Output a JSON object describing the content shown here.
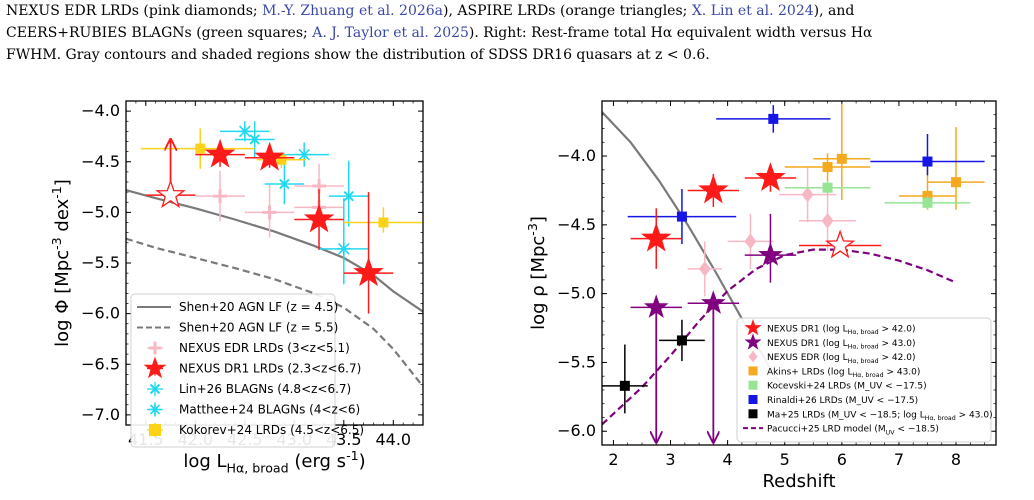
{
  "caption": {
    "l1_a": "NEXUS EDR LRDs (pink diamonds; ",
    "l1_c1": "M.-Y. Zhuang et al. 2026a",
    "l1_b": "), ASPIRE LRDs (orange triangles; ",
    "l1_c2": "X. Lin et al. 2024",
    "l1_c": "), and",
    "l2_a": "CEERS+RUBIES BLAGNs (green squares; ",
    "l2_c1": "A. J. Taylor et al. 2025",
    "l2_b": "). Right: Rest-frame total Hα equivalent width versus Hα",
    "l3": "FWHM. Gray contours and shaded regions show the distribution of SDSS DR16 quasars at z < 0.6."
  },
  "colors": {
    "red": "#ff1a1a",
    "pink": "#f7b8c4",
    "cyan": "#22d8f0",
    "gold": "#ffd21a",
    "gray": "#7a7a7a",
    "orange": "#f5a91f",
    "lightgreen": "#98e494",
    "blue": "#1515e6",
    "black": "#000000",
    "purple": "#800080"
  },
  "chart_data": [
    {
      "type": "scatter",
      "xlabel": "log L_{Hα, broad} (erg s^{-1})",
      "ylabel": "log Φ [Mpc^{-3} dex^{-1}]",
      "xlim": [
        41.3,
        44.3
      ],
      "ylim": [
        -7.1,
        -3.9
      ],
      "xticks": [
        "41.5",
        "42.0",
        "42.5",
        "43.0",
        "43.5",
        "44.0"
      ],
      "yticks": [
        "−4.0",
        "−4.5",
        "−5.0",
        "−5.5",
        "−6.0",
        "−6.5",
        "−7.0"
      ],
      "legend_position": "lower-left",
      "curves": [
        {
          "name": "Shen+20 AGN LF (z = 4.5)",
          "style": "solid",
          "color": "gray",
          "x": [
            41.3,
            41.6,
            42.0,
            42.4,
            42.8,
            43.2,
            43.5,
            43.8,
            44.0,
            44.3
          ],
          "y": [
            -4.78,
            -4.86,
            -4.96,
            -5.07,
            -5.19,
            -5.33,
            -5.45,
            -5.62,
            -5.78,
            -5.98
          ]
        },
        {
          "name": "Shen+20 AGN LF (z = 5.5)",
          "style": "dashed",
          "color": "gray",
          "x": [
            41.3,
            41.6,
            42.0,
            42.4,
            42.8,
            43.2,
            43.5,
            43.8,
            44.0,
            44.3
          ],
          "y": [
            -5.26,
            -5.35,
            -5.45,
            -5.55,
            -5.66,
            -5.8,
            -5.94,
            -6.15,
            -6.35,
            -6.72
          ]
        }
      ],
      "series": [
        {
          "name": "NEXUS EDR LRDs (3<z<5.1)",
          "marker": "plus",
          "color": "pink",
          "points": [
            {
              "x": 42.25,
              "y": -4.84,
              "xerr": [
                0.25,
                0.25
              ],
              "yerr": [
                0.25,
                0.25
              ]
            },
            {
              "x": 42.75,
              "y": -5.0,
              "xerr": [
                0.25,
                0.25
              ],
              "yerr": [
                0.25,
                0.28
              ]
            },
            {
              "x": 43.25,
              "y": -4.74,
              "xerr": [
                0.25,
                0.25
              ],
              "yerr": [
                0.22,
                0.22
              ]
            },
            {
              "x": 43.25,
              "y": -4.95,
              "xerr": [
                0.25,
                0.25
              ],
              "yerr": [
                0.2,
                0.2
              ]
            }
          ]
        },
        {
          "name": "Lin+26 BLAGNs (4.8<z<6.7)",
          "marker": "x",
          "color": "cyan",
          "points": [
            {
              "x": 42.6,
              "y": -4.28,
              "xerr": [
                0.2,
                0.2
              ],
              "yerr": [
                0.18,
                0.18
              ]
            },
            {
              "x": 42.9,
              "y": -4.72,
              "xerr": [
                0.2,
                0.2
              ],
              "yerr": [
                0.2,
                0.2
              ]
            },
            {
              "x": 43.55,
              "y": -4.84,
              "xerr": [
                0.2,
                0.2
              ],
              "yerr": [
                0.3,
                0.35
              ]
            }
          ]
        },
        {
          "name": "Matthee+24 BLAGNs (4<z<6)",
          "marker": "asterisk",
          "color": "cyan",
          "points": [
            {
              "x": 42.5,
              "y": -4.2,
              "xerr": [
                0.25,
                0.25
              ],
              "yerr": [
                0.1,
                0.1
              ]
            },
            {
              "x": 43.1,
              "y": -4.43,
              "xerr": [
                0.25,
                0.25
              ],
              "yerr": [
                0.12,
                0.12
              ]
            },
            {
              "x": 43.5,
              "y": -5.36,
              "xerr": [
                0.25,
                0.25
              ],
              "yerr": [
                0.35,
                0.5
              ]
            }
          ]
        },
        {
          "name": "Kokorev+24 LRDs (4.5<z<6.5)",
          "marker": "square",
          "color": "gold",
          "points": [
            {
              "x": 42.05,
              "y": -4.37,
              "xerr": [
                0.6,
                0.55
              ],
              "yerr": [
                0.2,
                0.2
              ]
            },
            {
              "x": 42.87,
              "y": -4.48,
              "xerr": [
                0.25,
                0.25
              ],
              "yerr": [
                0.08,
                0.08
              ]
            },
            {
              "x": 43.9,
              "y": -5.1,
              "xerr": [
                0.4,
                0.4
              ],
              "yerr": [
                0.1,
                0.15
              ]
            }
          ]
        },
        {
          "name": "NEXUS DR1 LRDs (2.3<z<6.7)",
          "marker": "star",
          "color": "red",
          "points": [
            {
              "x": 42.25,
              "y": -4.43,
              "xerr": [
                0.25,
                0.25
              ],
              "yerr": [
                0.12,
                0.12
              ]
            },
            {
              "x": 42.75,
              "y": -4.46,
              "xerr": [
                0.25,
                0.25
              ],
              "yerr": [
                0.1,
                0.1
              ]
            },
            {
              "x": 43.25,
              "y": -5.07,
              "xerr": [
                0.25,
                0.25
              ],
              "yerr": [
                0.3,
                0.3
              ]
            },
            {
              "x": 43.75,
              "y": -5.6,
              "xerr": [
                0.25,
                0.25
              ],
              "yerr": [
                0.4,
                0.8
              ]
            },
            {
              "x": 41.75,
              "y": -4.83,
              "xerr": [
                0.25,
                0.25
              ],
              "open": true,
              "lower_limit": true
            }
          ]
        }
      ]
    },
    {
      "type": "scatter",
      "xlabel": "Redshift",
      "ylabel": "log ρ [Mpc^{-3}]",
      "xlim": [
        1.8,
        8.7
      ],
      "ylim": [
        -6.1,
        -3.6
      ],
      "xticks": [
        "2",
        "3",
        "4",
        "5",
        "6",
        "7",
        "8"
      ],
      "yticks": [
        "−4.0",
        "−4.5",
        "−5.0",
        "−5.5",
        "−6.0"
      ],
      "legend_position": "lower-right",
      "curves": [
        {
          "name": "",
          "style": "solid",
          "color": "gray",
          "x": [
            1.8,
            2.3,
            2.8,
            3.3,
            3.8,
            4.3,
            4.8,
            5.0
          ],
          "y": [
            -3.68,
            -3.9,
            -4.18,
            -4.5,
            -4.85,
            -5.22,
            -5.58,
            -5.7
          ]
        },
        {
          "name": "Pacucci+25 LRD model (M_UV < −18.5)",
          "style": "dashed",
          "color": "purple",
          "x": [
            1.8,
            2.5,
            3.0,
            3.5,
            4.0,
            4.5,
            5.0,
            5.5,
            6.0,
            6.5,
            7.0,
            7.5,
            8.0
          ],
          "y": [
            -5.95,
            -5.68,
            -5.45,
            -5.2,
            -4.98,
            -4.82,
            -4.72,
            -4.68,
            -4.68,
            -4.71,
            -4.76,
            -4.83,
            -4.92
          ]
        }
      ],
      "series": [
        {
          "name": "NEXUS EDR (log L_{Hα, broad} > 42.0)",
          "marker": "diamond",
          "color": "pink",
          "points": [
            {
              "x": 3.6,
              "y": -4.82,
              "xerr": [
                0.3,
                0.3
              ],
              "yerr": [
                0.2,
                0.2
              ]
            },
            {
              "x": 4.4,
              "y": -4.62,
              "xerr": [
                0.4,
                0.4
              ],
              "yerr": [
                0.2,
                0.2
              ]
            },
            {
              "x": 5.4,
              "y": -4.28,
              "xerr": [
                0.5,
                0.5
              ],
              "yerr": [
                0.2,
                0.2
              ]
            },
            {
              "x": 5.75,
              "y": -4.47,
              "xerr": [
                0.5,
                0.5
              ],
              "yerr": [
                0.22,
                0.22
              ]
            }
          ]
        },
        {
          "name": "Akins+ LRDs (log L_{Hα, broad} > 43.0)",
          "marker": "square",
          "color": "orange",
          "points": [
            {
              "x": 5.75,
              "y": -4.08,
              "xerr": [
                0.75,
                0.75
              ],
              "yerr": [
                0.1,
                0.1
              ]
            },
            {
              "x": 6.0,
              "y": -4.02,
              "xerr": [
                0.5,
                0.5
              ],
              "yerr": [
                0.3,
                0.4
              ]
            },
            {
              "x": 7.5,
              "y": -4.29,
              "xerr": [
                0.5,
                0.5
              ],
              "yerr": [
                0.1,
                0.2
              ]
            },
            {
              "x": 8.0,
              "y": -4.19,
              "xerr": [
                0.5,
                0.5
              ],
              "yerr": [
                0.2,
                0.4
              ]
            }
          ]
        },
        {
          "name": "Kocevski+24 LRDs (M_UV < −17.5)",
          "marker": "square",
          "color": "lightgreen",
          "points": [
            {
              "x": 5.75,
              "y": -4.23,
              "xerr": [
                0.75,
                0.75
              ],
              "yerr": [
                0.05,
                0.05
              ]
            },
            {
              "x": 7.5,
              "y": -4.34,
              "xerr": [
                0.75,
                0.75
              ],
              "yerr": [
                0.05,
                0.05
              ]
            }
          ]
        },
        {
          "name": "Rinaldi+26 LRDs (M_UV < −17.5)",
          "marker": "square",
          "color": "blue",
          "points": [
            {
              "x": 3.2,
              "y": -4.44,
              "xerr": [
                0.95,
                0.95
              ],
              "yerr": [
                0.2,
                0.2
              ]
            },
            {
              "x": 4.8,
              "y": -3.73,
              "xerr": [
                1.0,
                1.0
              ],
              "yerr": [
                0.1,
                0.1
              ]
            },
            {
              "x": 7.5,
              "y": -4.04,
              "xerr": [
                1.0,
                1.0
              ],
              "yerr": [
                0.1,
                0.2
              ]
            }
          ]
        },
        {
          "name": "Ma+25 LRDs (M_UV < −18.5; log L_{Hα, broad} > 43.0)",
          "marker": "square",
          "color": "black",
          "points": [
            {
              "x": 2.2,
              "y": -5.67,
              "xerr": [
                0.4,
                0.4
              ],
              "yerr": [
                0.2,
                0.3
              ]
            },
            {
              "x": 3.2,
              "y": -5.34,
              "xerr": [
                0.4,
                0.4
              ],
              "yerr": [
                0.15,
                0.15
              ]
            }
          ]
        },
        {
          "name": "NEXUS DR1 (log L_{Hα, broad} > 43.0)",
          "marker": "star",
          "color": "purple",
          "points": [
            {
              "x": 2.75,
              "y": -5.1,
              "xerr": [
                0.45,
                0.45
              ],
              "upper_limit": true
            },
            {
              "x": 3.75,
              "y": -5.07,
              "xerr": [
                0.45,
                0.45
              ],
              "upper_limit": true
            },
            {
              "x": 4.75,
              "y": -4.72,
              "xerr": [
                0.45,
                0.45
              ],
              "yerr": [
                0.2,
                0.3
              ]
            }
          ]
        },
        {
          "name": "NEXUS DR1 (log L_{Hα, broad} > 42.0)",
          "marker": "star",
          "color": "red",
          "points": [
            {
              "x": 2.75,
              "y": -4.6,
              "xerr": [
                0.45,
                0.45
              ],
              "yerr": [
                0.22,
                0.22
              ]
            },
            {
              "x": 3.75,
              "y": -4.25,
              "xerr": [
                0.45,
                0.45
              ],
              "yerr": [
                0.12,
                0.12
              ]
            },
            {
              "x": 4.75,
              "y": -4.16,
              "xerr": [
                0.45,
                0.45
              ],
              "yerr": [
                0.1,
                0.1
              ]
            },
            {
              "x": 5.97,
              "y": -4.65,
              "xerr": [
                0.72,
                0.72
              ],
              "open": true
            }
          ]
        }
      ]
    }
  ]
}
